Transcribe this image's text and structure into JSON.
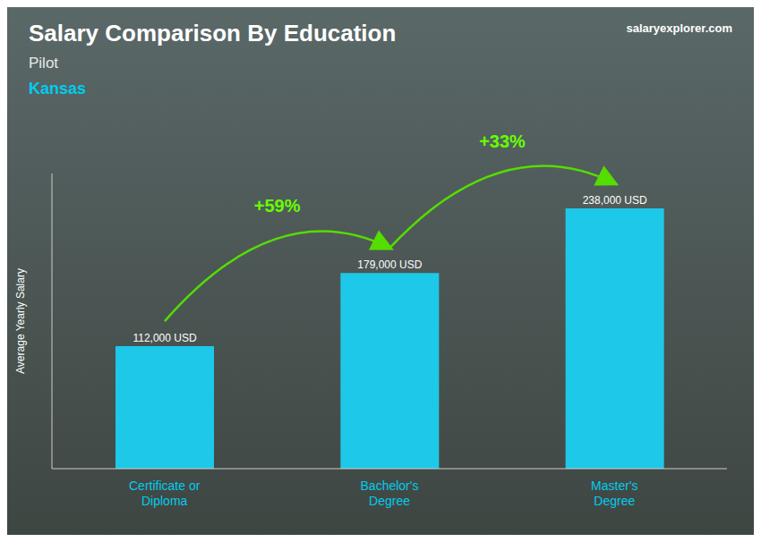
{
  "chart_data": {
    "type": "bar",
    "title": "Salary Comparison By Education",
    "subtitle": [
      "Pilot",
      "Kansas"
    ],
    "ylabel": "Average Yearly Salary",
    "categories": [
      "Certificate or\nDiploma",
      "Bachelor's\nDegree",
      "Master's\nDegree"
    ],
    "values": [
      112000,
      179000,
      238000
    ],
    "value_labels": [
      "112,000 USD",
      "179,000 USD",
      "238,000 USD"
    ],
    "data_labels": true,
    "color": "#1ec8e8",
    "ylim": [
      0,
      270000
    ],
    "grid": false,
    "tick_labels": "x",
    "annotations": [
      {
        "text": "+59%",
        "from": "Certificate or\nDiploma",
        "to": "Bachelor's\nDegree"
      },
      {
        "text": "+33%",
        "from": "Bachelor's\nDegree",
        "to": "Master's\nDegree"
      },
      {
        "text": "salaryexplorer.com"
      }
    ]
  }
}
